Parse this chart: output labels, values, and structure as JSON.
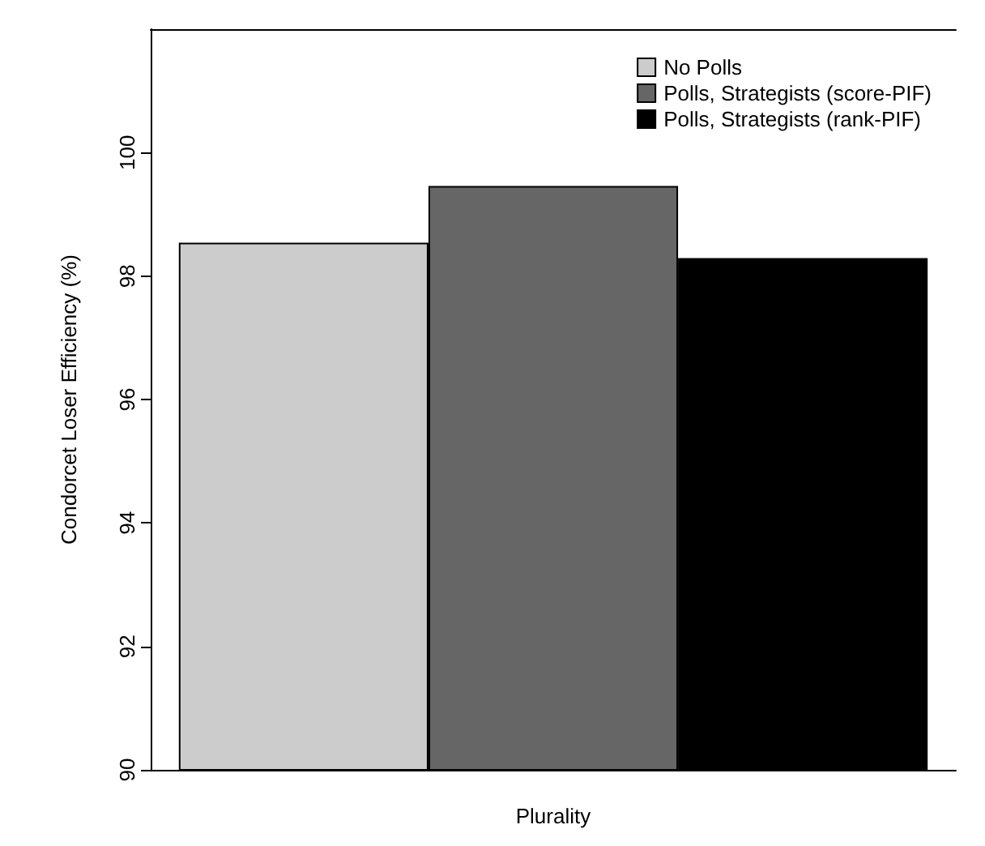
{
  "chart_data": {
    "type": "bar",
    "ylabel": "Condorcet Loser Efficiency (%)",
    "categories": [
      "Plurality"
    ],
    "series": [
      {
        "name": "No Polls",
        "color": "#cccccc",
        "values": [
          98.54
        ]
      },
      {
        "name": "Polls, Strategists (score-PIF)",
        "color": "#666666",
        "values": [
          99.46
        ]
      },
      {
        "name": "Polls, Strategists (rank-PIF)",
        "color": "#000000",
        "values": [
          98.29
        ]
      }
    ],
    "ylim": [
      90,
      102
    ],
    "yticks": [
      90,
      92,
      94,
      96,
      98,
      100
    ],
    "grid": false,
    "legend": "top right"
  }
}
